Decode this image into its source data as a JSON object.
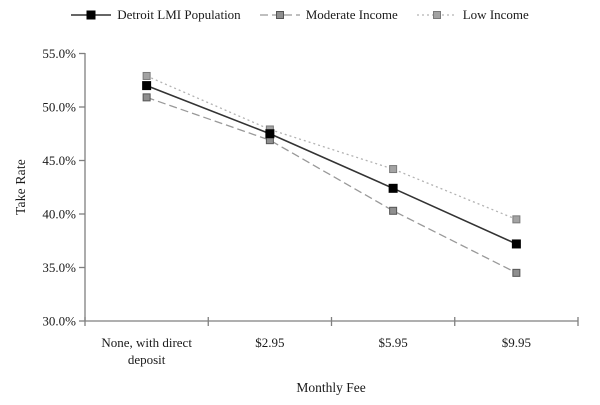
{
  "chart_data": {
    "type": "line",
    "title": "",
    "xlabel": "Monthly Fee",
    "ylabel": "Take Rate",
    "categories": [
      [
        "None, with direct",
        "deposit"
      ],
      [
        "$2.95"
      ],
      [
        "$5.95"
      ],
      [
        "$9.95"
      ]
    ],
    "ylim": [
      30,
      55
    ],
    "yticks": [
      {
        "value": 55,
        "label": "55.0%"
      },
      {
        "value": 50,
        "label": "50.0%"
      },
      {
        "value": 45,
        "label": "45.0%"
      },
      {
        "value": 40,
        "label": "40.0%"
      },
      {
        "value": 35,
        "label": "35.0%"
      },
      {
        "value": 30,
        "label": "30.0%"
      }
    ],
    "grid": false,
    "legend_position": "top",
    "series": [
      {
        "name": "Detroit LMI Population",
        "values": [
          52.0,
          47.5,
          42.4,
          37.2
        ],
        "line_style": "solid",
        "line_color": "#333333",
        "marker_color": "#000000",
        "marker_edge": "#000000",
        "marker_size": 8
      },
      {
        "name": "Moderate Income",
        "values": [
          50.9,
          46.9,
          40.3,
          34.5
        ],
        "line_style": "dashed",
        "line_color": "#999999",
        "marker_color": "#8f8f8f",
        "marker_edge": "#555555",
        "marker_size": 7
      },
      {
        "name": "Low Income",
        "values": [
          52.9,
          47.9,
          44.2,
          39.5
        ],
        "line_style": "dotted",
        "line_color": "#b3b3b3",
        "marker_color": "#a3a3a3",
        "marker_edge": "#7a7a7a",
        "marker_size": 7
      }
    ],
    "axis_color": "#7f7f7f",
    "text_color": "#1a1a1a"
  }
}
